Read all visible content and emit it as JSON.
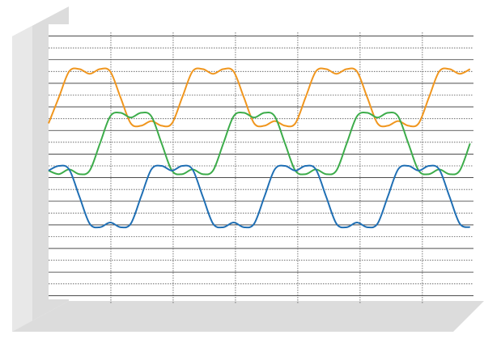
{
  "chart_data": {
    "type": "line",
    "x": [
      0,
      0.165,
      0.33,
      0.495,
      0.66,
      0.825,
      0.99,
      1.155,
      1.32,
      1.485,
      1.65,
      1.815,
      1.98,
      2.145,
      2.31,
      2.475,
      2.64,
      2.805,
      2.97,
      3.135,
      3.3,
      3.465,
      3.63,
      3.795,
      3.96,
      4.125,
      4.29,
      4.455,
      4.62,
      4.785,
      4.95,
      5.115,
      5.28,
      5.445,
      5.61,
      5.775,
      5.94,
      6.105,
      6.27,
      6.435,
      6.6,
      6.765
    ],
    "series": [
      {
        "color": "#f0961e",
        "values": [
          15.6,
          17.8,
          20.0,
          20.2,
          19.8,
          20.2,
          20.0,
          17.8,
          15.6,
          15.4,
          15.8,
          15.4,
          15.6,
          17.8,
          20.0,
          20.2,
          19.8,
          20.2,
          20.0,
          17.8,
          15.6,
          15.4,
          15.8,
          15.4,
          15.6,
          17.8,
          20.0,
          20.2,
          19.8,
          20.2,
          20.0,
          17.8,
          15.6,
          15.4,
          15.8,
          15.4,
          15.6,
          17.8,
          20.0,
          20.2,
          19.8,
          20.2
        ]
      },
      {
        "color": "#3cac4a",
        "values": [
          11.6,
          11.3,
          11.7,
          11.3,
          11.6,
          13.9,
          16.2,
          16.5,
          16.1,
          16.5,
          16.2,
          13.9,
          11.6,
          11.3,
          11.7,
          11.3,
          11.6,
          13.9,
          16.2,
          16.5,
          16.1,
          16.5,
          16.2,
          13.9,
          11.6,
          11.3,
          11.7,
          11.3,
          11.6,
          13.9,
          16.2,
          16.5,
          16.1,
          16.5,
          16.2,
          13.9,
          11.6,
          11.3,
          11.7,
          11.3,
          11.6,
          13.9
        ]
      },
      {
        "color": "#1f6fb4",
        "values": [
          11.6,
          12.0,
          11.7,
          9.4,
          7.1,
          6.8,
          7.2,
          6.8,
          7.1,
          9.4,
          11.7,
          12.0,
          11.6,
          12.0,
          11.7,
          9.4,
          7.1,
          6.8,
          7.2,
          6.8,
          7.1,
          9.4,
          11.7,
          12.0,
          11.6,
          12.0,
          11.7,
          9.4,
          7.1,
          6.8,
          7.2,
          6.8,
          7.1,
          9.4,
          11.7,
          12.0,
          11.6,
          12.0,
          11.7,
          9.4,
          7.1,
          6.8
        ]
      }
    ],
    "xlim": [
      0,
      6.82
    ],
    "xticks": [
      1,
      2,
      3,
      4,
      5,
      6
    ],
    "ylim": [
      0,
      24
    ],
    "yticks": [
      1,
      2,
      3,
      4,
      5,
      6,
      7,
      8,
      9,
      10,
      11,
      12,
      13,
      14,
      15,
      16,
      17,
      18,
      19,
      20,
      21,
      22,
      23
    ],
    "grid": true
  }
}
